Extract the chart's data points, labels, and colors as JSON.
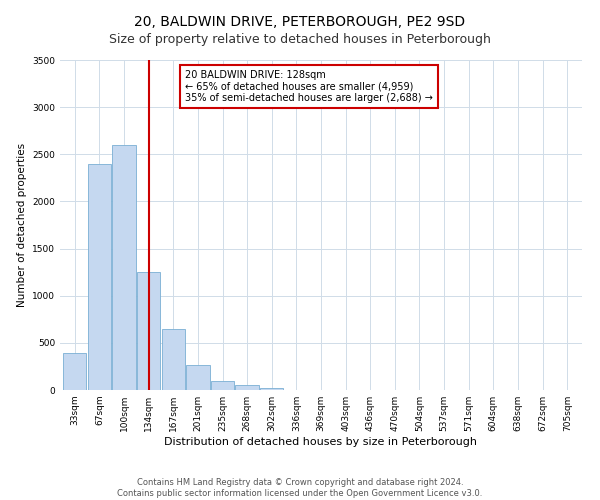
{
  "title": "20, BALDWIN DRIVE, PETERBOROUGH, PE2 9SD",
  "subtitle": "Size of property relative to detached houses in Peterborough",
  "xlabel": "Distribution of detached houses by size in Peterborough",
  "ylabel": "Number of detached properties",
  "bar_labels": [
    "33sqm",
    "67sqm",
    "100sqm",
    "134sqm",
    "167sqm",
    "201sqm",
    "235sqm",
    "268sqm",
    "302sqm",
    "336sqm",
    "369sqm",
    "403sqm",
    "436sqm",
    "470sqm",
    "504sqm",
    "537sqm",
    "571sqm",
    "604sqm",
    "638sqm",
    "672sqm",
    "705sqm"
  ],
  "bar_values": [
    390,
    2400,
    2600,
    1250,
    650,
    260,
    100,
    50,
    20,
    5,
    5,
    0,
    0,
    0,
    0,
    0,
    0,
    0,
    0,
    0,
    0
  ],
  "bar_color": "#c5d8f0",
  "bar_edge_color": "#7aafd4",
  "vline_x": 3,
  "vline_color": "#cc0000",
  "annotation_text": "20 BALDWIN DRIVE: 128sqm\n← 65% of detached houses are smaller (4,959)\n35% of semi-detached houses are larger (2,688) →",
  "annotation_box_color": "#ffffff",
  "annotation_box_edge": "#cc0000",
  "ylim": [
    0,
    3500
  ],
  "yticks": [
    0,
    500,
    1000,
    1500,
    2000,
    2500,
    3000,
    3500
  ],
  "footer_line1": "Contains HM Land Registry data © Crown copyright and database right 2024.",
  "footer_line2": "Contains public sector information licensed under the Open Government Licence v3.0.",
  "plot_bg_color": "#ffffff",
  "fig_bg_color": "#ffffff",
  "grid_color": "#d0dce8",
  "title_fontsize": 10,
  "subtitle_fontsize": 9,
  "xlabel_fontsize": 8,
  "ylabel_fontsize": 7.5,
  "tick_fontsize": 6.5,
  "annot_fontsize": 7,
  "footer_fontsize": 6
}
